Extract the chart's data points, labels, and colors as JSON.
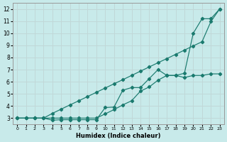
{
  "xlabel": "Humidex (Indice chaleur)",
  "bg_color": "#c8eaea",
  "grid_color": "#c0d8d8",
  "line_color": "#1a7a6e",
  "xlim": [
    -0.5,
    23.5
  ],
  "ylim": [
    2.5,
    12.5
  ],
  "xtick_labels": [
    "0",
    "1",
    "2",
    "3",
    "4",
    "5",
    "6",
    "7",
    "8",
    "9",
    "10",
    "11",
    "12",
    "13",
    "14",
    "15",
    "16",
    "17",
    "18",
    "19",
    "20",
    "21",
    "22",
    "23"
  ],
  "ytick_labels": [
    "3",
    "4",
    "5",
    "6",
    "7",
    "8",
    "9",
    "10",
    "11",
    "12"
  ],
  "ytick_vals": [
    3,
    4,
    5,
    6,
    7,
    8,
    9,
    10,
    11,
    12
  ],
  "line1_x": [
    0,
    1,
    2,
    3,
    4,
    5,
    6,
    7,
    8,
    9,
    10,
    11,
    12,
    13,
    14,
    15,
    16,
    17,
    18,
    19,
    20,
    21,
    22,
    23
  ],
  "line1_y": [
    3.0,
    3.0,
    3.0,
    3.0,
    3.39,
    3.74,
    4.09,
    4.43,
    4.78,
    5.13,
    5.48,
    5.83,
    6.17,
    6.52,
    6.87,
    7.22,
    7.57,
    7.91,
    8.26,
    8.61,
    8.96,
    9.3,
    10.96,
    12.0
  ],
  "line2_x": [
    0,
    1,
    2,
    3,
    4,
    5,
    6,
    7,
    8,
    9,
    10,
    11,
    12,
    13,
    14,
    15,
    16,
    17,
    18,
    19,
    20,
    21,
    22,
    23
  ],
  "line2_y": [
    3.0,
    3.0,
    3.0,
    3.0,
    3.0,
    3.0,
    3.0,
    3.0,
    3.0,
    3.0,
    3.35,
    3.7,
    4.09,
    4.43,
    5.22,
    5.57,
    6.13,
    6.52,
    6.52,
    6.7,
    10.0,
    11.2,
    11.2,
    12.0
  ],
  "line3_x": [
    0,
    1,
    2,
    3,
    4,
    5,
    6,
    7,
    8,
    9,
    10,
    11,
    12,
    13,
    14,
    15,
    16,
    17,
    18,
    19,
    20,
    21,
    22,
    23
  ],
  "line3_y": [
    3.0,
    3.0,
    3.0,
    3.0,
    2.83,
    2.87,
    2.87,
    2.87,
    2.87,
    2.87,
    3.87,
    3.91,
    5.3,
    5.52,
    5.52,
    6.26,
    7.0,
    6.52,
    6.52,
    6.35,
    6.52,
    6.52,
    6.65,
    6.65
  ]
}
